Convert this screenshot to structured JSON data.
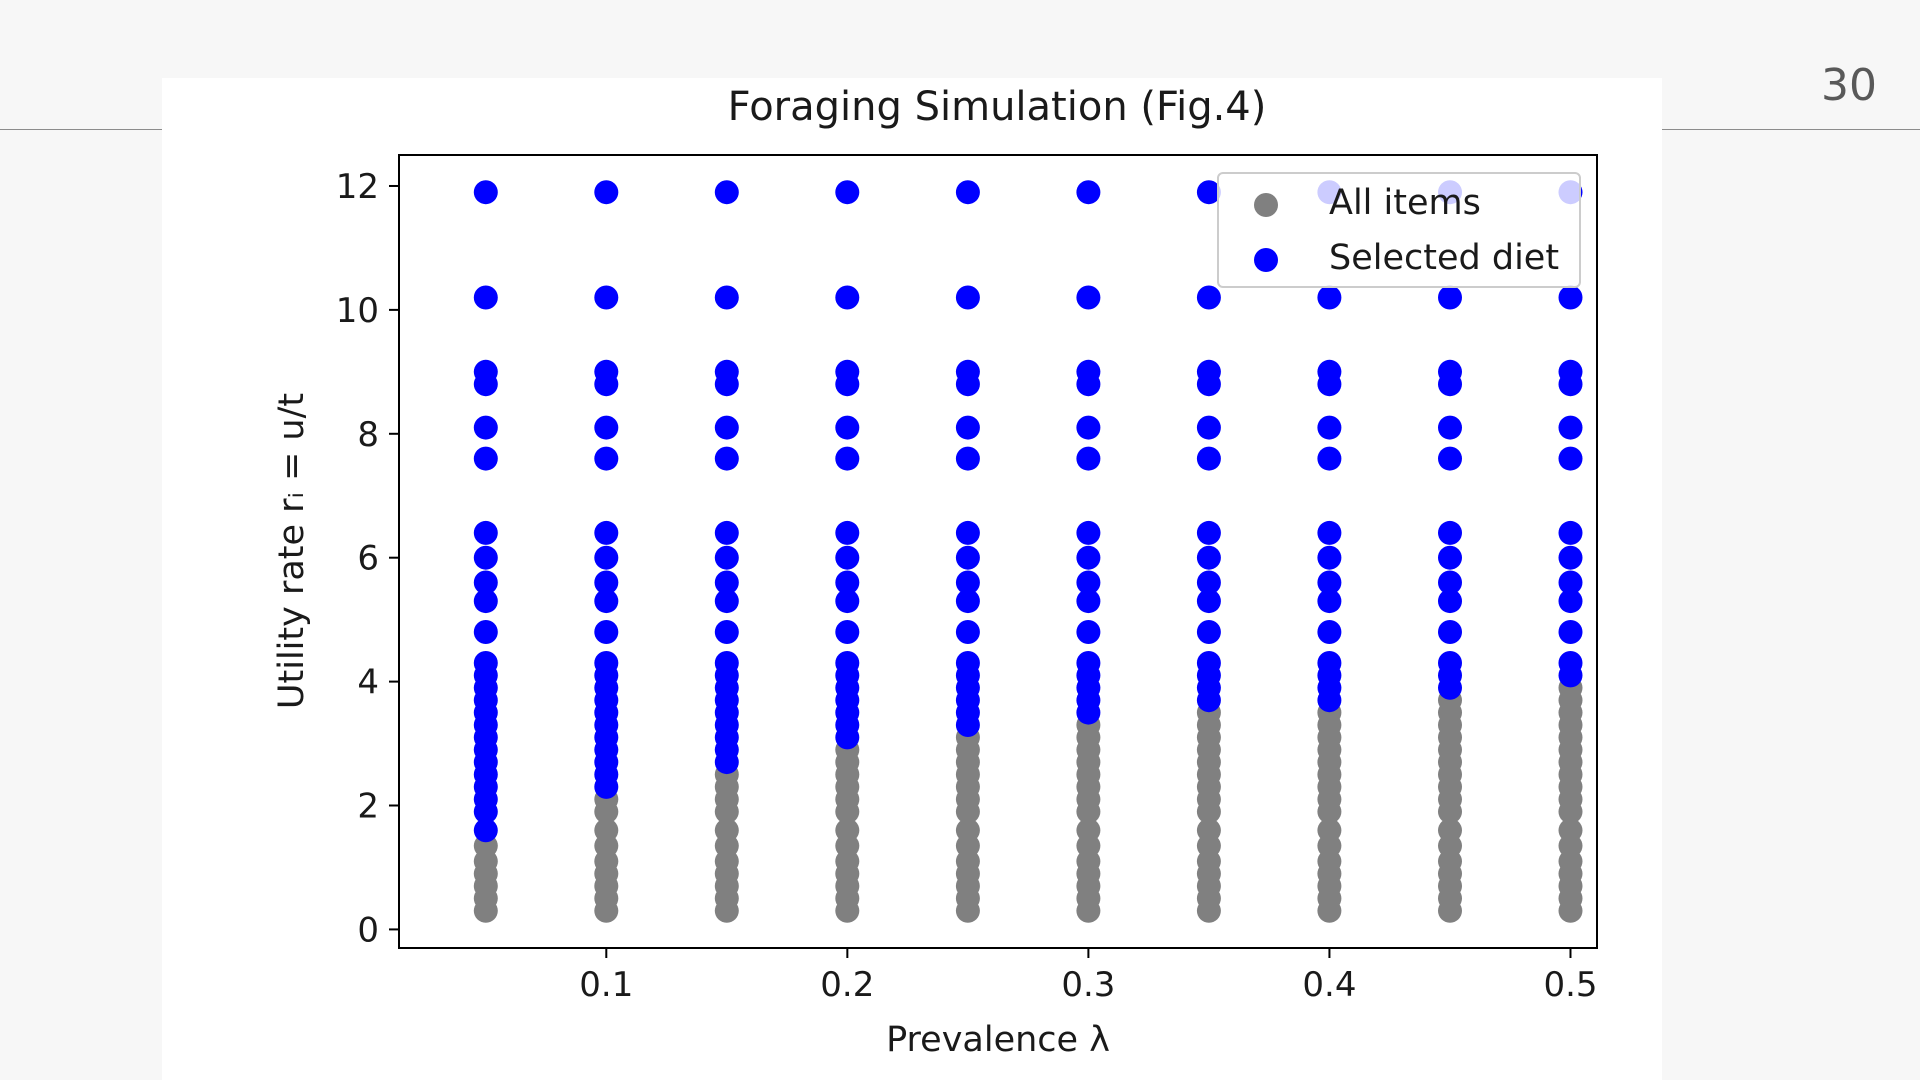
{
  "slide": {
    "page_number": "30"
  },
  "colors": {
    "all_items": "#808080",
    "selected_diet": "#0000ff",
    "background": "#f7f7f7"
  },
  "chart_data": {
    "type": "scatter",
    "title": "Foraging Simulation (Fig.4)",
    "xlabel": "Prevalence λ",
    "ylabel": "Utility rate rᵢ = u/t",
    "xlim": [
      0.014,
      0.511
    ],
    "ylim": [
      -0.3,
      12.5
    ],
    "x_ticks": [
      0.1,
      0.2,
      0.3,
      0.4,
      0.5
    ],
    "x_tick_labels": [
      "0.1",
      "0.2",
      "0.3",
      "0.4",
      "0.5"
    ],
    "y_ticks": [
      0,
      2,
      4,
      6,
      8,
      10,
      12
    ],
    "y_tick_labels": [
      "0",
      "2",
      "4",
      "6",
      "8",
      "10",
      "12"
    ],
    "grid": false,
    "legend_position": "top-right",
    "x": [
      0.05,
      0.1,
      0.15,
      0.2,
      0.25,
      0.3,
      0.35,
      0.4,
      0.45,
      0.5
    ],
    "item_rates": [
      0.3,
      0.5,
      0.7,
      0.9,
      1.1,
      1.35,
      1.6,
      1.9,
      2.1,
      2.3,
      2.5,
      2.7,
      2.9,
      3.1,
      3.3,
      3.5,
      3.7,
      3.9,
      4.1,
      4.3,
      4.8,
      5.3,
      5.6,
      6.0,
      6.4,
      7.6,
      8.1,
      8.8,
      9.0,
      10.2,
      11.9
    ],
    "selection_thresholds": [
      1.6,
      2.2,
      2.65,
      3.0,
      3.15,
      3.4,
      3.7,
      3.7,
      3.9,
      4.0
    ],
    "series": [
      {
        "name": "All items",
        "color": "#808080"
      },
      {
        "name": "Selected diet",
        "color": "#0000ff"
      }
    ]
  }
}
